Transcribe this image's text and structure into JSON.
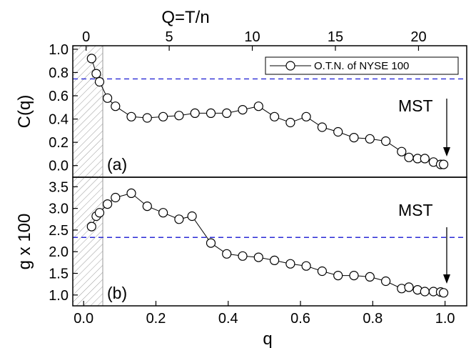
{
  "chart_data": [
    {
      "type": "line",
      "panel_label": "(a)",
      "ylabel": "C(q)",
      "top_xlabel": "Q=T/n",
      "top_xticks": [
        "0",
        "5",
        "10",
        "15",
        "20"
      ],
      "top_xlim": [
        -0.8,
        22.9
      ],
      "xlim": [
        -0.03,
        1.06
      ],
      "ylim": [
        -0.1,
        1.03
      ],
      "yticks": [
        "0.0",
        "0.2",
        "0.4",
        "0.6",
        "0.8",
        "1.0"
      ],
      "legend": "O.T.N. of NYSE 100",
      "legend_position": "top-right",
      "reference_line_y": 0.745,
      "annotation": "MST",
      "shaded_region_q": [
        -0.03,
        0.043
      ],
      "series": [
        {
          "name": "O.T.N. of NYSE 100",
          "x": [
            0.022,
            0.035,
            0.044,
            0.066,
            0.088,
            0.132,
            0.176,
            0.22,
            0.264,
            0.308,
            0.352,
            0.396,
            0.44,
            0.484,
            0.528,
            0.572,
            0.616,
            0.66,
            0.704,
            0.748,
            0.792,
            0.836,
            0.88,
            0.9,
            0.924,
            0.944,
            0.968,
            0.988,
            0.996
          ],
          "y": [
            0.92,
            0.79,
            0.72,
            0.58,
            0.51,
            0.42,
            0.41,
            0.42,
            0.43,
            0.45,
            0.45,
            0.45,
            0.48,
            0.51,
            0.42,
            0.37,
            0.42,
            0.33,
            0.29,
            0.24,
            0.23,
            0.21,
            0.12,
            0.07,
            0.06,
            0.06,
            0.03,
            0.01,
            0.01
          ]
        }
      ]
    },
    {
      "type": "line",
      "panel_label": "(b)",
      "ylabel": "g x 100",
      "xlabel": "q",
      "xlim": [
        -0.03,
        1.06
      ],
      "xticks": [
        "0.0",
        "0.2",
        "0.4",
        "0.6",
        "0.8",
        "1.0"
      ],
      "ylim": [
        0.75,
        3.72
      ],
      "yticks": [
        "1.0",
        "1.5",
        "2.0",
        "2.5",
        "3.0",
        "3.5"
      ],
      "reference_line_y": 2.33,
      "annotation": "MST",
      "shaded_region_q": [
        -0.03,
        0.043
      ],
      "series": [
        {
          "name": "O.T.N. of NYSE 100",
          "x": [
            0.022,
            0.035,
            0.044,
            0.066,
            0.088,
            0.132,
            0.176,
            0.22,
            0.264,
            0.3,
            0.352,
            0.396,
            0.44,
            0.484,
            0.528,
            0.572,
            0.616,
            0.66,
            0.704,
            0.748,
            0.792,
            0.836,
            0.88,
            0.9,
            0.924,
            0.944,
            0.968,
            0.988,
            0.996
          ],
          "y": [
            2.58,
            2.82,
            2.9,
            3.1,
            3.25,
            3.35,
            3.05,
            2.9,
            2.75,
            2.82,
            2.2,
            1.95,
            1.9,
            1.87,
            1.8,
            1.72,
            1.67,
            1.55,
            1.45,
            1.45,
            1.42,
            1.32,
            1.15,
            1.18,
            1.12,
            1.08,
            1.08,
            1.07,
            1.05
          ]
        }
      ]
    }
  ]
}
